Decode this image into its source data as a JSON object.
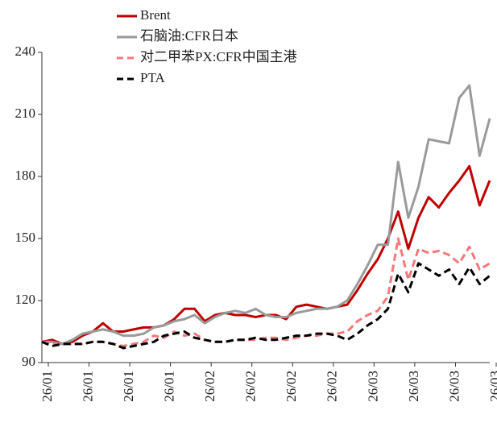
{
  "chart_data": {
    "type": "line",
    "categories": [
      "26/01",
      null,
      null,
      null,
      "26/01",
      null,
      null,
      null,
      "26/01",
      null,
      null,
      null,
      "26/01",
      null,
      null,
      null,
      "26/02",
      null,
      null,
      null,
      "26/02",
      null,
      null,
      null,
      "26/02",
      null,
      null,
      null,
      "26/02",
      null,
      null,
      null,
      "26/03",
      null,
      null,
      null,
      "26/03",
      null,
      null,
      null,
      "26/03",
      null,
      null,
      null,
      "26/03"
    ],
    "series": [
      {
        "name": "Brent",
        "color": "#c00000",
        "dash": "solid",
        "values": [
          100,
          101,
          99,
          100,
          103,
          105,
          109,
          105,
          105,
          106,
          107,
          107,
          108,
          111,
          116,
          116,
          110,
          113,
          114,
          113,
          113,
          112,
          113,
          113,
          111,
          117,
          118,
          117,
          116,
          117,
          118,
          125,
          133,
          140,
          150,
          163,
          145,
          160,
          170,
          165,
          172,
          178,
          185,
          166,
          178
        ]
      },
      {
        "name": "石脑油:CFR日本",
        "color": "#9a9a9a",
        "dash": "solid",
        "values": [
          100,
          100,
          99,
          101,
          104,
          105,
          106,
          105,
          103,
          103,
          104,
          107,
          108,
          110,
          111,
          113,
          109,
          112,
          114,
          115,
          114,
          116,
          113,
          112,
          112,
          114,
          115,
          116,
          116,
          117,
          120,
          128,
          137,
          147,
          147,
          187,
          160,
          175,
          198,
          197,
          196,
          218,
          224,
          190,
          208
        ]
      },
      {
        "name": "对二甲苯PX:CFR中国主港",
        "color": "#f4787c",
        "dash": "dashed",
        "values": [
          100,
          99,
          99,
          99,
          99,
          100,
          100,
          99,
          98,
          99,
          100,
          103,
          102,
          105,
          103,
          104,
          101,
          100,
          100,
          101,
          101,
          101,
          102,
          102,
          101,
          102,
          103,
          103,
          104,
          104,
          105,
          110,
          113,
          115,
          122,
          150,
          130,
          145,
          143,
          144,
          142,
          138,
          146,
          135,
          138
        ]
      },
      {
        "name": "PTA",
        "color": "#000000",
        "dash": "dashed",
        "values": [
          100,
          98,
          99,
          99,
          99,
          100,
          100,
          99,
          97,
          98,
          99,
          100,
          103,
          104,
          105,
          102,
          101,
          100,
          100,
          101,
          101,
          102,
          101,
          101,
          102,
          103,
          103,
          104,
          104,
          103,
          101,
          104,
          108,
          111,
          116,
          133,
          124,
          138,
          135,
          132,
          135,
          128,
          136,
          128,
          132
        ]
      }
    ],
    "ylim": [
      90,
      240
    ],
    "yticks": [
      90,
      120,
      150,
      180,
      210,
      240
    ],
    "grid": false,
    "legend": "top-left"
  }
}
